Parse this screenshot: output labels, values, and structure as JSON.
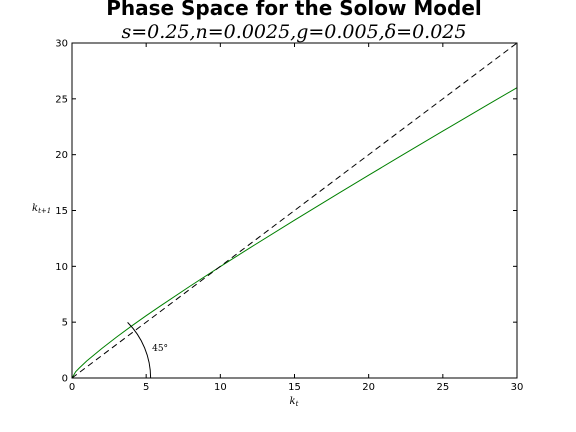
{
  "chart_data": {
    "type": "line",
    "title": "Phase Space for the Solow Model",
    "subtitle": "s=0.25,n=0.0025,g=0.005,δ=0.025",
    "xlabel": "k",
    "xlabel_sub": "t",
    "ylabel": "k",
    "ylabel_sub": "t+1",
    "xlim": [
      0,
      30
    ],
    "ylim": [
      0,
      30
    ],
    "xticks": [
      0,
      5,
      10,
      15,
      20,
      25,
      30
    ],
    "yticks": [
      0,
      5,
      10,
      15,
      20,
      25,
      30
    ],
    "grid": false,
    "annotations": [
      {
        "text": "45°",
        "x": 5.4,
        "y": 2.4
      }
    ],
    "series": [
      {
        "style": "solid",
        "color": "#008000",
        "x": [
          0,
          0.25,
          0.5,
          1,
          2,
          3,
          4,
          5,
          6,
          8,
          10,
          12,
          15,
          18,
          20,
          22,
          25,
          28,
          30
        ],
        "y": [
          0,
          0.57,
          0.91,
          1.53,
          2.63,
          3.66,
          4.64,
          5.58,
          6.49,
          8.26,
          9.98,
          11.66,
          14.13,
          16.56,
          18.16,
          19.75,
          22.11,
          24.45,
          26.0
        ]
      },
      {
        "style": "dashed",
        "color": "#000000",
        "x": [
          0,
          30
        ],
        "y": [
          0,
          30
        ]
      }
    ]
  }
}
